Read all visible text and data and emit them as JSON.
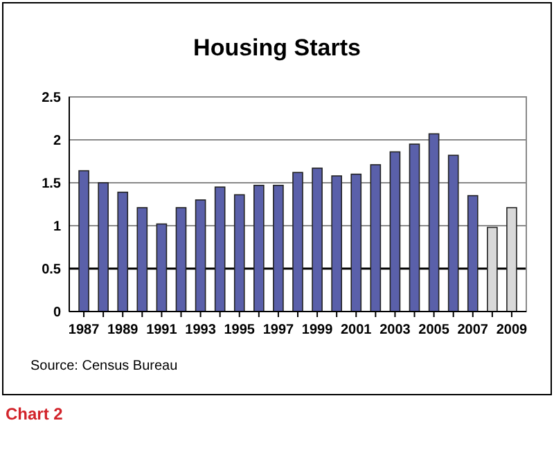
{
  "chart_data": {
    "type": "bar",
    "title": "Housing Starts",
    "categories": [
      "1987",
      null,
      "1989",
      null,
      "1991",
      null,
      "1993",
      null,
      "1995",
      null,
      "1997",
      null,
      "1999",
      null,
      "2001",
      null,
      "2003",
      null,
      "2005",
      null,
      "2007",
      null,
      "2009"
    ],
    "values": [
      1.64,
      1.5,
      1.39,
      1.21,
      1.02,
      1.21,
      1.3,
      1.45,
      1.36,
      1.47,
      1.47,
      1.62,
      1.67,
      1.58,
      1.6,
      1.71,
      1.86,
      1.95,
      2.07,
      1.82,
      1.35,
      0.98,
      1.21
    ],
    "colors": [
      "#5a60aa",
      "#5a60aa",
      "#5a60aa",
      "#5a60aa",
      "#5a60aa",
      "#5a60aa",
      "#5a60aa",
      "#5a60aa",
      "#5a60aa",
      "#5a60aa",
      "#5a60aa",
      "#5a60aa",
      "#5a60aa",
      "#5a60aa",
      "#5a60aa",
      "#5a60aa",
      "#5a60aa",
      "#5a60aa",
      "#5a60aa",
      "#5a60aa",
      "#5a60aa",
      "#d9d9d9",
      "#d9d9d9"
    ],
    "ref_lines": [
      {
        "axis": "y",
        "value": 0.5,
        "color": "#000000"
      }
    ],
    "ylim": [
      0,
      2.5
    ],
    "yticks": [
      0,
      0.5,
      1,
      1.5,
      2,
      2.5
    ],
    "grid": "y",
    "annotations": [
      "Source: Census Bureau",
      "Chart 2"
    ]
  }
}
